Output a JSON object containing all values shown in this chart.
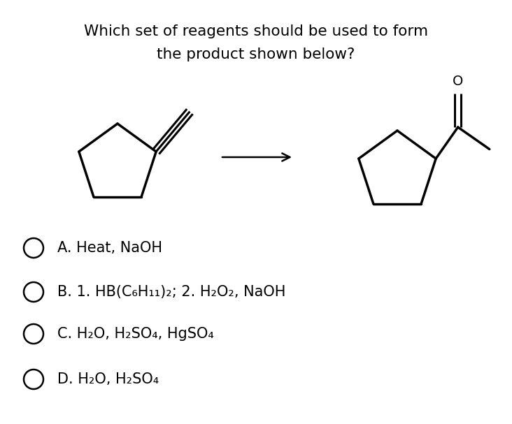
{
  "title_line1": "Which set of reagents should be used to form",
  "title_line2": "the product shown below?",
  "options": [
    "A. Heat, NaOH",
    "B. 1. HB(C₆H₁₁)₂; 2. H₂O₂, NaOH",
    "C. H₂O, H₂SO₄, HgSO₄",
    "D. H₂O, H₂SO₄"
  ],
  "background_color": "#ffffff",
  "text_color": "#000000",
  "title_fontsize": 15.5,
  "option_fontsize": 15
}
